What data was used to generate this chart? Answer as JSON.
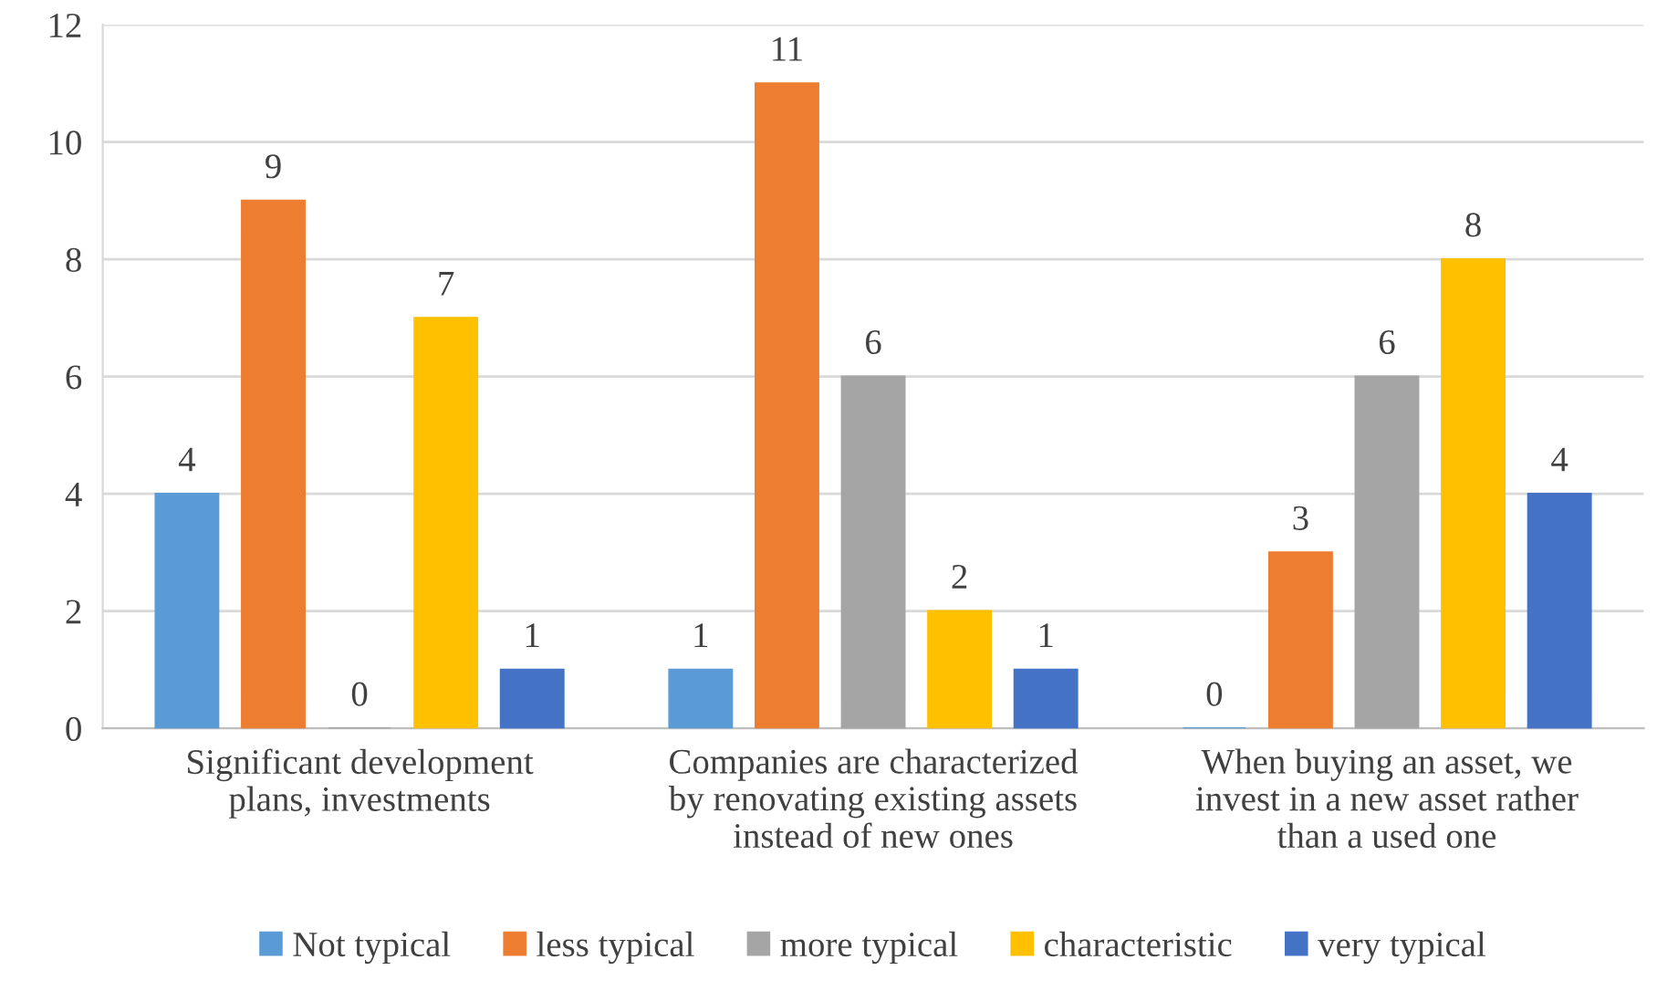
{
  "chart_data": {
    "type": "bar",
    "categories": [
      "Significant development plans, investments",
      "Companies are characterized by renovating existing assets instead of new ones",
      "When buying an asset, we invest in a new asset rather than a used one"
    ],
    "series": [
      {
        "name": "Not typical",
        "color": "#5b9bd5",
        "values": [
          4,
          1,
          0
        ]
      },
      {
        "name": "less typical",
        "color": "#ed7d31",
        "values": [
          9,
          11,
          3
        ]
      },
      {
        "name": "more typical",
        "color": "#a5a5a5",
        "values": [
          0,
          6,
          6
        ]
      },
      {
        "name": "characteristic",
        "color": "#ffc000",
        "values": [
          7,
          2,
          8
        ]
      },
      {
        "name": "very typical",
        "color": "#4472c4",
        "values": [
          1,
          1,
          4
        ]
      }
    ],
    "ylim": [
      0,
      12
    ],
    "yticks": [
      0,
      2,
      4,
      6,
      8,
      10,
      12
    ],
    "grid": "y",
    "legend": "bottom",
    "data_labels": true
  }
}
